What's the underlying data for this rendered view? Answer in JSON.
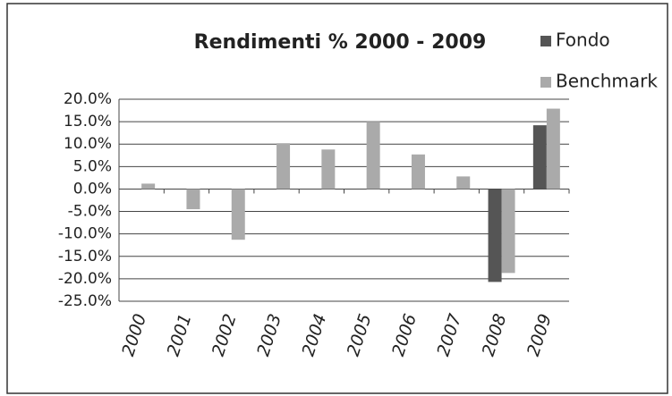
{
  "chart_data": {
    "type": "bar",
    "title": "Rendimenti % 2000 - 2009",
    "categories": [
      "2000",
      "2001",
      "2002",
      "2003",
      "2004",
      "2005",
      "2006",
      "2007",
      "2008",
      "2009"
    ],
    "series": [
      {
        "name": "Fondo",
        "color": "#555555",
        "values": [
          null,
          null,
          null,
          null,
          null,
          null,
          null,
          null,
          -20.7,
          14.2
        ]
      },
      {
        "name": "Benchmark",
        "color": "#aaaaaa",
        "values": [
          1.2,
          -4.5,
          -11.3,
          10.2,
          8.8,
          15.0,
          7.7,
          2.8,
          -18.7,
          17.9
        ]
      }
    ],
    "ylim": [
      -25,
      20
    ],
    "yticks": [
      {
        "value": -25,
        "label": "-25.0%"
      },
      {
        "value": -20,
        "label": "-20.0%"
      },
      {
        "value": -15,
        "label": "-15.0%"
      },
      {
        "value": -10,
        "label": "-10.0%"
      },
      {
        "value": -5,
        "label": "-5.0%"
      },
      {
        "value": 0,
        "label": "0.0%"
      },
      {
        "value": 5,
        "label": "5.0%"
      },
      {
        "value": 10,
        "label": "10.0%"
      },
      {
        "value": 15,
        "label": "15.0%"
      },
      {
        "value": 20,
        "label": "20.0%"
      }
    ],
    "grid": true,
    "legend": "top-right"
  }
}
